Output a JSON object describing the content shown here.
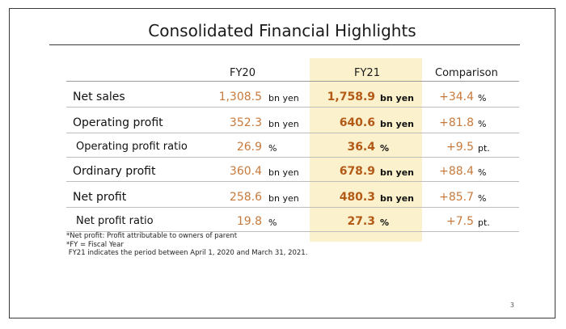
{
  "title": "Consolidated Financial Highlights",
  "columns": {
    "fy20": "FY20",
    "fy21": "FY21",
    "comparison": "Comparison"
  },
  "rows": [
    {
      "label": "Net sales",
      "fy20": "1,308.5",
      "fy20_unit": "bn yen",
      "fy21": "1,758.9",
      "fy21_unit": "bn yen",
      "comparison": "+34.4",
      "comparison_unit": "%"
    },
    {
      "label": "Operating profit",
      "fy20": "352.3",
      "fy20_unit": "bn yen",
      "fy21": "640.6",
      "fy21_unit": "bn yen",
      "comparison": "+81.8",
      "comparison_unit": "%"
    },
    {
      "label": "Operating profit ratio",
      "fy20": "26.9",
      "fy20_unit": "%",
      "fy21": "36.4",
      "fy21_unit": "%",
      "comparison": "+9.5",
      "comparison_unit": "pt."
    },
    {
      "label": "Ordinary profit",
      "fy20": "360.4",
      "fy20_unit": "bn yen",
      "fy21": "678.9",
      "fy21_unit": "bn yen",
      "comparison": "+88.4",
      "comparison_unit": "%"
    },
    {
      "label": "Net profit",
      "fy20": "258.6",
      "fy20_unit": "bn yen",
      "fy21": "480.3",
      "fy21_unit": "bn yen",
      "comparison": "+85.7",
      "comparison_unit": "%"
    },
    {
      "label": "Net profit ratio",
      "fy20": "19.8",
      "fy20_unit": "%",
      "fy21": "27.3",
      "fy21_unit": "%",
      "comparison": "+7.5",
      "comparison_unit": "pt."
    }
  ],
  "notes": [
    "*Net profit: Profit attributable to owners of parent",
    "*FY = Fiscal Year",
    " FY21 indicates the period between April 1, 2020 and March 31, 2021."
  ],
  "page_number": "3",
  "colors": {
    "fy20_value": "#c77a3c",
    "fy21_value": "#b35a17",
    "fy21_highlight": "#fbf1cc",
    "comparison_value": "#c77a3c"
  }
}
